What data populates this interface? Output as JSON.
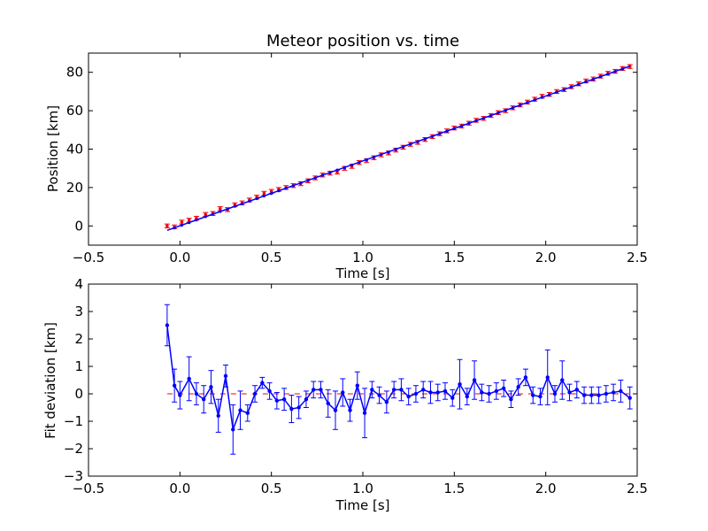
{
  "chart_data": [
    {
      "type": "scatter",
      "title": "Meteor position vs. time",
      "xlabel": "Time [s]",
      "ylabel": "Position [km]",
      "xlim": [
        -0.5,
        2.5
      ],
      "ylim": [
        -10,
        90
      ],
      "xticks": [
        -0.5,
        0.0,
        0.5,
        1.0,
        1.5,
        2.0,
        2.5
      ],
      "xtick_labels": [
        "−0.5",
        "0.0",
        "0.5",
        "1.0",
        "1.5",
        "2.0",
        "2.5"
      ],
      "yticks": [
        0,
        20,
        40,
        60,
        80
      ],
      "ytick_labels": [
        "0",
        "20",
        "40",
        "60",
        "80"
      ],
      "grid": false,
      "series": [
        {
          "kind": "errorbar-points",
          "color": "#ff0000",
          "x": [
            -0.07,
            -0.03,
            0.01,
            0.05,
            0.09,
            0.14,
            0.18,
            0.22,
            0.26,
            0.3,
            0.34,
            0.38,
            0.42,
            0.46,
            0.5,
            0.54,
            0.58,
            0.62,
            0.66,
            0.7,
            0.74,
            0.78,
            0.82,
            0.86,
            0.9,
            0.94,
            0.98,
            1.02,
            1.06,
            1.1,
            1.14,
            1.18,
            1.22,
            1.26,
            1.3,
            1.34,
            1.38,
            1.42,
            1.46,
            1.5,
            1.54,
            1.58,
            1.62,
            1.66,
            1.7,
            1.74,
            1.78,
            1.82,
            1.86,
            1.9,
            1.94,
            1.98,
            2.02,
            2.06,
            2.1,
            2.14,
            2.18,
            2.22,
            2.26,
            2.3,
            2.34,
            2.38,
            2.42,
            2.46
          ],
          "y": [
            0.0,
            -0.5,
            2.0,
            3.0,
            4.0,
            6.0,
            6.5,
            9.0,
            8.5,
            11.0,
            12.0,
            13.5,
            15.0,
            17.0,
            18.0,
            19.0,
            20.0,
            21.0,
            22.0,
            23.5,
            25.0,
            26.5,
            27.5,
            28.0,
            30.0,
            31.0,
            33.0,
            34.0,
            35.5,
            37.0,
            38.0,
            39.5,
            41.0,
            42.5,
            43.5,
            45.0,
            46.5,
            48.0,
            49.5,
            51.0,
            52.0,
            53.5,
            55.0,
            56.0,
            57.5,
            59.0,
            60.0,
            61.5,
            63.0,
            64.5,
            66.0,
            67.5,
            68.5,
            70.0,
            71.0,
            72.5,
            74.0,
            75.5,
            76.5,
            78.0,
            79.5,
            80.5,
            82.0,
            83.0
          ],
          "yerr": 1.0
        },
        {
          "kind": "line",
          "color": "#0000ff",
          "x": [
            -0.07,
            2.46
          ],
          "y": [
            -2.3,
            83.2
          ]
        },
        {
          "kind": "points",
          "color": "#0000ff",
          "x": [
            -0.03,
            0.01,
            0.05,
            0.09,
            0.14,
            0.18,
            0.22,
            0.26,
            0.3,
            0.34,
            0.38,
            0.42,
            0.46,
            0.5,
            0.54,
            0.58,
            0.62,
            0.66,
            0.7,
            0.74,
            0.78,
            0.82,
            0.86,
            0.9,
            0.94,
            0.98,
            1.02,
            1.06,
            1.1,
            1.14,
            1.18,
            1.22,
            1.26,
            1.3,
            1.34,
            1.38,
            1.42,
            1.46,
            1.5,
            1.54,
            1.58,
            1.62,
            1.66,
            1.7,
            1.74,
            1.78,
            1.82,
            1.86,
            1.9,
            1.94,
            1.98,
            2.02,
            2.06,
            2.1,
            2.14,
            2.18,
            2.22,
            2.26,
            2.3,
            2.34,
            2.38,
            2.42
          ],
          "y": [
            -1.0,
            0.3,
            1.7,
            3.1,
            4.8,
            6.1,
            7.5,
            8.8,
            10.2,
            11.5,
            12.9,
            14.2,
            15.6,
            16.9,
            18.3,
            19.6,
            21.0,
            22.3,
            23.7,
            25.0,
            26.4,
            27.7,
            29.1,
            30.4,
            31.8,
            33.1,
            34.5,
            35.8,
            37.2,
            38.5,
            39.9,
            41.2,
            42.6,
            43.9,
            45.3,
            46.6,
            48.0,
            49.3,
            50.7,
            52.0,
            53.4,
            54.7,
            56.1,
            57.4,
            58.8,
            60.1,
            61.5,
            62.8,
            64.2,
            65.5,
            66.9,
            68.2,
            69.6,
            70.9,
            72.3,
            73.6,
            75.0,
            76.3,
            77.7,
            79.0,
            80.4,
            81.7
          ]
        }
      ]
    },
    {
      "type": "line",
      "title": "",
      "xlabel": "Time [s]",
      "ylabel": "Fit deviation [km]",
      "xlim": [
        -0.5,
        2.5
      ],
      "ylim": [
        -3,
        4
      ],
      "xticks": [
        -0.5,
        0.0,
        0.5,
        1.0,
        1.5,
        2.0,
        2.5
      ],
      "xtick_labels": [
        "−0.5",
        "0.0",
        "0.5",
        "1.0",
        "1.5",
        "2.0",
        "2.5"
      ],
      "yticks": [
        -3,
        -2,
        -1,
        0,
        1,
        2,
        3,
        4
      ],
      "ytick_labels": [
        "−3",
        "−2",
        "−1",
        "0",
        "1",
        "2",
        "3",
        "4"
      ],
      "grid": false,
      "reference_line": {
        "y": 0,
        "color": "#ff0000",
        "style": "dashed",
        "x": [
          -0.07,
          2.46
        ]
      },
      "series": [
        {
          "kind": "errorbar-line",
          "color": "#0000ff",
          "x": [
            -0.07,
            -0.03,
            0.0,
            0.05,
            0.09,
            0.13,
            0.17,
            0.21,
            0.25,
            0.29,
            0.33,
            0.37,
            0.41,
            0.45,
            0.49,
            0.53,
            0.57,
            0.61,
            0.65,
            0.69,
            0.73,
            0.77,
            0.81,
            0.85,
            0.89,
            0.93,
            0.97,
            1.01,
            1.05,
            1.09,
            1.13,
            1.17,
            1.21,
            1.25,
            1.29,
            1.33,
            1.37,
            1.41,
            1.45,
            1.49,
            1.53,
            1.57,
            1.61,
            1.65,
            1.69,
            1.73,
            1.77,
            1.81,
            1.85,
            1.89,
            1.93,
            1.97,
            2.01,
            2.05,
            2.09,
            2.13,
            2.17,
            2.21,
            2.25,
            2.29,
            2.33,
            2.37,
            2.41,
            2.46
          ],
          "y": [
            2.5,
            0.3,
            -0.05,
            0.55,
            0.0,
            -0.2,
            0.25,
            -0.8,
            0.65,
            -1.3,
            -0.6,
            -0.7,
            0.0,
            0.4,
            0.1,
            -0.25,
            -0.2,
            -0.55,
            -0.5,
            -0.2,
            0.15,
            0.15,
            -0.35,
            -0.6,
            0.05,
            -0.6,
            0.3,
            -0.7,
            0.15,
            -0.05,
            -0.3,
            0.15,
            0.15,
            -0.1,
            0.0,
            0.15,
            0.05,
            0.05,
            0.1,
            -0.15,
            0.35,
            -0.1,
            0.5,
            0.05,
            0.0,
            0.1,
            0.2,
            -0.2,
            0.25,
            0.6,
            -0.05,
            -0.1,
            0.6,
            0.0,
            0.5,
            0.05,
            0.15,
            -0.05,
            -0.05,
            -0.05,
            0.0,
            0.05,
            0.1,
            -0.15
          ],
          "yerr": [
            0.75,
            0.6,
            0.5,
            0.8,
            0.4,
            0.5,
            0.6,
            0.6,
            0.4,
            0.9,
            0.7,
            0.3,
            0.3,
            0.2,
            0.3,
            0.3,
            0.4,
            0.5,
            0.4,
            0.3,
            0.3,
            0.3,
            0.5,
            0.7,
            0.5,
            0.4,
            0.5,
            0.9,
            0.3,
            0.3,
            0.4,
            0.3,
            0.4,
            0.3,
            0.3,
            0.3,
            0.4,
            0.3,
            0.3,
            0.3,
            0.9,
            0.3,
            0.7,
            0.3,
            0.3,
            0.3,
            0.3,
            0.3,
            0.3,
            0.3,
            0.3,
            0.3,
            1.0,
            0.3,
            0.7,
            0.3,
            0.3,
            0.3,
            0.3,
            0.3,
            0.3,
            0.3,
            0.4,
            0.4
          ]
        }
      ]
    }
  ]
}
